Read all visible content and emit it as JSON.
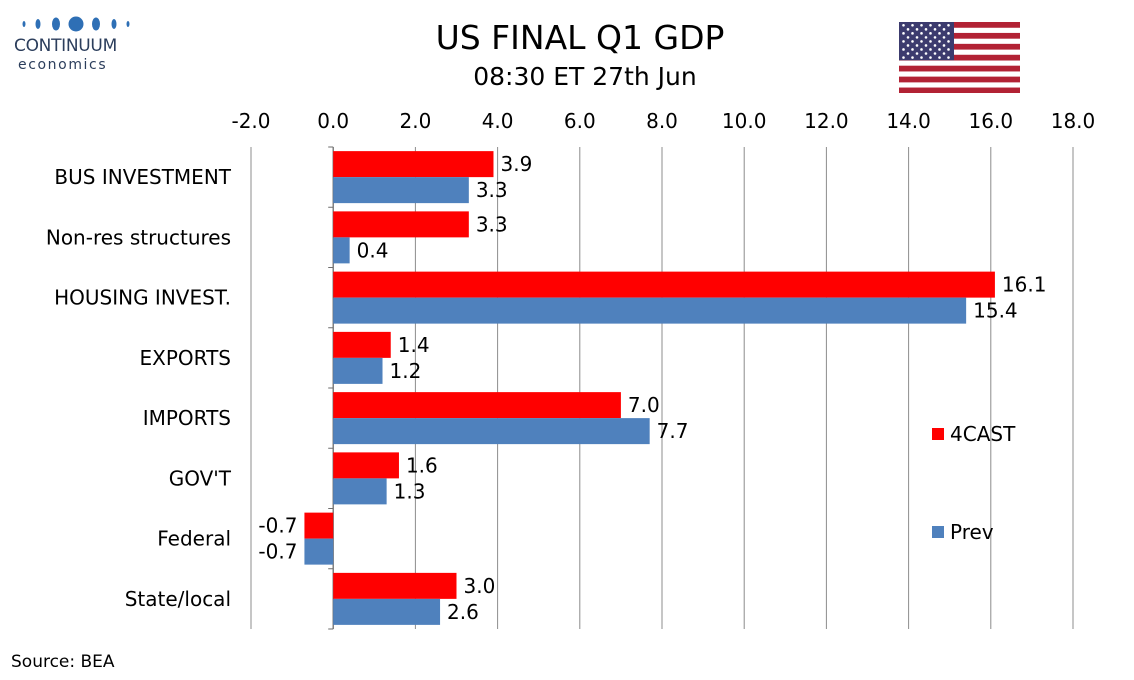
{
  "logo": {
    "line1": "CONTINUUM",
    "line2": "economics"
  },
  "header": {
    "title": "US FINAL Q1 GDP",
    "subtitle": "08:30 ET 27th Jun"
  },
  "source": "Source: BEA",
  "colors": {
    "series_4cast": "#ff0000",
    "series_prev": "#4f81bd",
    "grid": "#8c8c8c",
    "logo_navy": "#2c3e5c",
    "logo_blue": "#2e6fb5"
  },
  "flag_icon": "us-flag-icon",
  "chart_data": {
    "type": "bar",
    "orientation": "horizontal",
    "categories": [
      "BUS INVESTMENT",
      "Non-res structures",
      "HOUSING INVEST.",
      "EXPORTS",
      "IMPORTS",
      "GOV'T",
      "Federal",
      "State/local"
    ],
    "series": [
      {
        "name": "4CAST",
        "values": [
          3.9,
          3.3,
          16.1,
          1.4,
          7.0,
          1.6,
          -0.7,
          3.0
        ],
        "labels": [
          "3.9",
          "3.3",
          "16.1",
          "1.4",
          "7.0",
          "1.6",
          "-0.7",
          "3.0"
        ]
      },
      {
        "name": "Prev",
        "values": [
          3.3,
          0.4,
          15.4,
          1.2,
          7.7,
          1.3,
          -0.7,
          2.6
        ],
        "labels": [
          "3.3",
          "0.4",
          "15.4",
          "1.2",
          "7.7",
          "1.3",
          "-0.7",
          "2.6"
        ]
      }
    ],
    "xlim": [
      -2.0,
      18.0
    ],
    "x_ticks": [
      -2.0,
      0.0,
      2.0,
      4.0,
      6.0,
      8.0,
      10.0,
      12.0,
      14.0,
      16.0,
      18.0
    ],
    "x_tick_labels": [
      "-2.0",
      "0.0",
      "2.0",
      "4.0",
      "6.0",
      "8.0",
      "10.0",
      "12.0",
      "14.0",
      "16.0",
      "18.0"
    ],
    "x_axis_position": "top",
    "grid": "vertical",
    "legend_placement": "right"
  }
}
